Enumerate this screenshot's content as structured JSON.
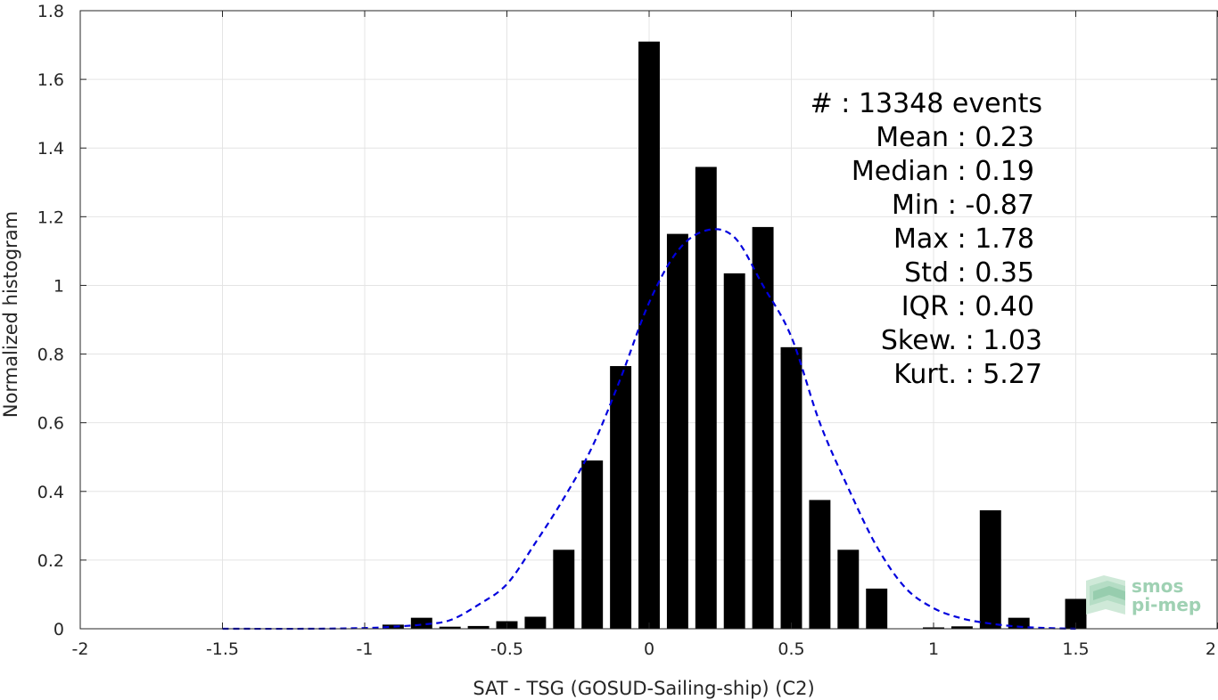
{
  "chart_data": {
    "type": "bar",
    "xlabel": "SAT - TSG (GOSUD-Sailing-ship) (C2)",
    "ylabel": "Normalized histogram",
    "xlim": [
      -2,
      2
    ],
    "ylim": [
      0,
      1.8
    ],
    "xticks": [
      -2,
      -1.5,
      -1,
      -0.5,
      0,
      0.5,
      1,
      1.5,
      2
    ],
    "xtick_labels": [
      "-2",
      "-1.5",
      "-1",
      "-0.5",
      "0",
      "0.5",
      "1",
      "1.5",
      "2"
    ],
    "yticks": [
      0,
      0.2,
      0.4,
      0.6,
      0.8,
      1,
      1.2,
      1.4,
      1.6,
      1.8
    ],
    "ytick_labels": [
      "0",
      "0.2",
      "0.4",
      "0.6",
      "0.8",
      "1",
      "1.2",
      "1.4",
      "1.6",
      "1.8"
    ],
    "grid": true,
    "bar_color": "#000000",
    "bar_width": 0.075,
    "bars": {
      "x": [
        -0.9,
        -0.8,
        -0.7,
        -0.6,
        -0.5,
        -0.4,
        -0.3,
        -0.2,
        -0.1,
        0,
        0.1,
        0.2,
        0.3,
        0.4,
        0.5,
        0.6,
        0.7,
        0.8,
        1.0,
        1.1,
        1.2,
        1.3,
        1.5
      ],
      "values": [
        0.012,
        0.032,
        0.006,
        0.008,
        0.022,
        0.035,
        0.23,
        0.49,
        0.765,
        1.71,
        1.15,
        1.345,
        1.035,
        1.17,
        0.82,
        0.375,
        0.23,
        0.117,
        0.004,
        0.007,
        0.345,
        0.032,
        0.087
      ]
    },
    "fit_curve": {
      "style": "dashed",
      "color": "#0000dd",
      "x": [
        -1.5,
        -1.2,
        -1.0,
        -0.9,
        -0.8,
        -0.7,
        -0.6,
        -0.5,
        -0.4,
        -0.3,
        -0.2,
        -0.1,
        0.0,
        0.1,
        0.2,
        0.3,
        0.4,
        0.5,
        0.6,
        0.7,
        0.8,
        0.9,
        1.0,
        1.1,
        1.2,
        1.3,
        1.4,
        1.5
      ],
      "y": [
        0.0,
        0.0,
        0.002,
        0.006,
        0.012,
        0.025,
        0.07,
        0.13,
        0.25,
        0.38,
        0.53,
        0.73,
        0.95,
        1.1,
        1.16,
        1.14,
        1.0,
        0.85,
        0.6,
        0.41,
        0.24,
        0.12,
        0.06,
        0.03,
        0.015,
        0.006,
        0.002,
        0.0
      ]
    },
    "stats": {
      "events": "#  : 13348 events",
      "mean": "Mean : 0.23",
      "median": "Median : 0.19",
      "min": "Min : -0.87",
      "max": "Max : 1.78",
      "std": "Std : 0.35",
      "iqr": "IQR : 0.40",
      "skew": "Skew. : 1.03",
      "kurt": "Kurt. : 5.27"
    },
    "logo": {
      "line1": "smos",
      "line2": "pi-mep",
      "color": "#9fd1b3"
    }
  }
}
